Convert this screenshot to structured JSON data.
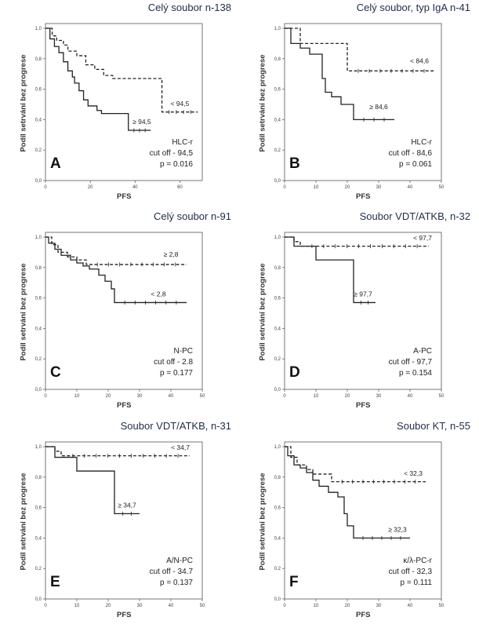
{
  "chart_data": [
    {
      "type": "line",
      "id": "A",
      "panel_letter": "A",
      "title": "Celý soubor n-138",
      "xlabel": "PFS",
      "ylabel": "Podíl setrvání bez progrese",
      "xlim": [
        0,
        70
      ],
      "ylim": [
        0,
        1
      ],
      "xticks": [
        0,
        20,
        40,
        60
      ],
      "yticks": [
        "0,0",
        "0,2",
        "0,4",
        "0,6",
        "0,8",
        "1,0"
      ],
      "stats": [
        "HLC-r",
        "cut off - 94,5",
        "p = 0.016"
      ],
      "series": [
        {
          "name": "< 94,5",
          "dashed": true,
          "x": [
            0,
            3,
            5,
            8,
            10,
            14,
            18,
            22,
            26,
            30,
            50,
            52,
            68
          ],
          "y": [
            1.0,
            0.95,
            0.92,
            0.89,
            0.85,
            0.82,
            0.76,
            0.73,
            0.69,
            0.67,
            0.67,
            0.45,
            0.45
          ],
          "label_at": [
            60,
            0.49
          ]
        },
        {
          "name": "≥ 94,5",
          "dashed": false,
          "x": [
            0,
            2,
            4,
            6,
            8,
            10,
            12,
            13,
            15,
            17,
            19,
            23,
            25,
            35,
            37,
            47
          ],
          "y": [
            1.0,
            0.93,
            0.88,
            0.84,
            0.78,
            0.72,
            0.68,
            0.64,
            0.59,
            0.53,
            0.49,
            0.46,
            0.44,
            0.44,
            0.33,
            0.33
          ],
          "label_at": [
            43,
            0.37
          ]
        }
      ]
    },
    {
      "type": "line",
      "id": "B",
      "panel_letter": "B",
      "title": "Celý soubor, typ IgA n-41",
      "xlabel": "PFS",
      "ylabel": "Podíl setrvání bez progrese",
      "xlim": [
        0,
        50
      ],
      "ylim": [
        0,
        1
      ],
      "xticks": [
        0,
        10,
        20,
        30,
        40,
        50
      ],
      "yticks": [
        "0,0",
        "0,2",
        "0,4",
        "0,6",
        "0,8",
        "1,0"
      ],
      "stats": [
        "HLC-r",
        "cut off - 84,6",
        "p = 0.061"
      ],
      "series": [
        {
          "name": "< 84,6",
          "dashed": true,
          "x": [
            0,
            5,
            19,
            20,
            48
          ],
          "y": [
            1.0,
            0.9,
            0.9,
            0.72,
            0.72
          ],
          "label_at": [
            43,
            0.77
          ]
        },
        {
          "name": "≥ 84,6",
          "dashed": false,
          "x": [
            0,
            2,
            5,
            8,
            12,
            13,
            15,
            18,
            22,
            35
          ],
          "y": [
            1.0,
            0.9,
            0.87,
            0.83,
            0.67,
            0.58,
            0.55,
            0.5,
            0.4,
            0.4
          ],
          "label_at": [
            30,
            0.47
          ]
        }
      ]
    },
    {
      "type": "line",
      "id": "C",
      "panel_letter": "C",
      "title": "Celý soubor n-91",
      "xlabel": "PFS",
      "ylabel": "Podíl setrvání bez progrese",
      "xlim": [
        0,
        50
      ],
      "ylim": [
        0,
        1
      ],
      "xticks": [
        0,
        10,
        20,
        30,
        40,
        50
      ],
      "yticks": [
        "0,0",
        "0,2",
        "0,4",
        "0,6",
        "0,8",
        "1,0"
      ],
      "stats": [
        "N-PC",
        "cut off - 2.8",
        "p = 0.177"
      ],
      "series": [
        {
          "name": "≥ 2,8",
          "dashed": true,
          "x": [
            0,
            2,
            4,
            7,
            10,
            13,
            45
          ],
          "y": [
            1.0,
            0.95,
            0.9,
            0.87,
            0.85,
            0.82,
            0.82
          ],
          "label_at": [
            40,
            0.87
          ]
        },
        {
          "name": "< 2,8",
          "dashed": false,
          "x": [
            0,
            1,
            3,
            5,
            8,
            10,
            12,
            14,
            17,
            19,
            21,
            22,
            45
          ],
          "y": [
            1.0,
            0.96,
            0.92,
            0.88,
            0.85,
            0.83,
            0.81,
            0.79,
            0.75,
            0.71,
            0.66,
            0.57,
            0.57
          ],
          "label_at": [
            36,
            0.61
          ]
        }
      ]
    },
    {
      "type": "line",
      "id": "D",
      "panel_letter": "D",
      "title": "Soubor VDT/ATKB, n-32",
      "xlabel": "PFS",
      "ylabel": "Podíl setrvání bez progrese",
      "xlim": [
        0,
        50
      ],
      "ylim": [
        0,
        1
      ],
      "xticks": [
        0,
        10,
        20,
        30,
        40,
        50
      ],
      "yticks": [
        "0,0",
        "0,2",
        "0,4",
        "0,6",
        "0,8",
        "1,0"
      ],
      "stats": [
        "A-PC",
        "cut off - 97,7",
        "p = 0.154"
      ],
      "series": [
        {
          "name": "< 97,7",
          "dashed": true,
          "x": [
            0,
            3,
            5,
            46
          ],
          "y": [
            1.0,
            0.97,
            0.94,
            0.94
          ],
          "label_at": [
            44,
            0.98
          ]
        },
        {
          "name": "≥ 97,7",
          "dashed": false,
          "x": [
            0,
            3,
            10,
            22,
            29
          ],
          "y": [
            1.0,
            0.94,
            0.85,
            0.57,
            0.57
          ],
          "label_at": [
            25,
            0.61
          ]
        }
      ]
    },
    {
      "type": "line",
      "id": "E",
      "panel_letter": "E",
      "title": "Soubor VDT/ATKB, n-31",
      "xlabel": "PFS",
      "ylabel": "Podíl setrvání bez progrese",
      "xlim": [
        0,
        50
      ],
      "ylim": [
        0,
        1
      ],
      "xticks": [
        0,
        10,
        20,
        30,
        40,
        50
      ],
      "yticks": [
        "0,0",
        "0,2",
        "0,4",
        "0,6",
        "0,8",
        "1,0"
      ],
      "stats": [
        "A/N-PC",
        "cut off - 34.7",
        "p = 0.137"
      ],
      "series": [
        {
          "name": "< 34,7",
          "dashed": true,
          "x": [
            0,
            3,
            5,
            46
          ],
          "y": [
            1.0,
            0.97,
            0.94,
            0.94
          ],
          "label_at": [
            43,
            0.98
          ]
        },
        {
          "name": "≥ 34,7",
          "dashed": false,
          "x": [
            0,
            3,
            10,
            22,
            30
          ],
          "y": [
            1.0,
            0.93,
            0.84,
            0.56,
            0.56
          ],
          "label_at": [
            26,
            0.6
          ]
        }
      ]
    },
    {
      "type": "line",
      "id": "F",
      "panel_letter": "F",
      "title": "Soubor KT, n-55",
      "xlabel": "PFS",
      "ylabel": "Podíl setrvání bez progrese",
      "xlim": [
        0,
        50
      ],
      "ylim": [
        0,
        1
      ],
      "xticks": [
        0,
        10,
        20,
        30,
        40,
        50
      ],
      "yticks": [
        "0,0",
        "0,2",
        "0,4",
        "0,6",
        "0,8",
        "1,0"
      ],
      "stats": [
        "κ/λ-PC-r",
        "cut off - 32,3",
        "p = 0.111"
      ],
      "series": [
        {
          "name": "< 32,3",
          "dashed": true,
          "x": [
            0,
            2,
            4,
            7,
            9,
            15,
            45
          ],
          "y": [
            1.0,
            0.93,
            0.88,
            0.85,
            0.82,
            0.77,
            0.77
          ],
          "label_at": [
            41,
            0.81
          ]
        },
        {
          "name": "≥ 32,3",
          "dashed": false,
          "x": [
            0,
            1,
            3,
            5,
            7,
            9,
            11,
            14,
            17,
            19,
            20,
            22,
            40
          ],
          "y": [
            1.0,
            0.94,
            0.88,
            0.86,
            0.83,
            0.78,
            0.74,
            0.7,
            0.67,
            0.56,
            0.48,
            0.4,
            0.4
          ],
          "label_at": [
            36,
            0.44
          ]
        }
      ]
    }
  ]
}
